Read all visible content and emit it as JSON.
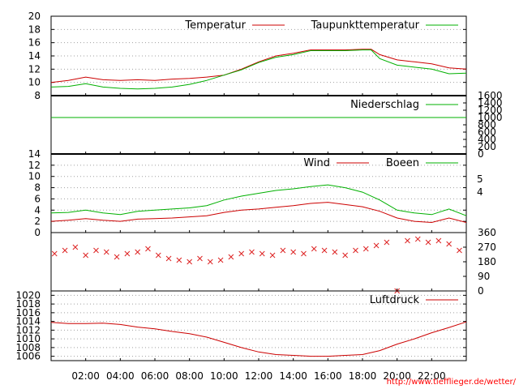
{
  "source_url": "http://www.tiefflieger.de/wetter/",
  "colors": {
    "primary": "#cc0000",
    "secondary": "#00b000",
    "marker": "#dd2222"
  },
  "x_axis": {
    "min": 0,
    "max": 24,
    "tick_labels": [
      "02:00",
      "04:00",
      "06:00",
      "08:00",
      "10:00",
      "12:00",
      "14:00",
      "16:00",
      "18:00",
      "20:00",
      "22:00"
    ],
    "tick_hours": [
      2,
      4,
      6,
      8,
      10,
      12,
      14,
      16,
      18,
      20,
      22
    ]
  },
  "chart_data": [
    {
      "id": "temperature",
      "type": "line",
      "ylim": [
        8,
        20
      ],
      "y_ticks": [
        "8",
        "10",
        "12",
        "14",
        "16",
        "18",
        "20"
      ],
      "grid": true,
      "legend_position": "top-right",
      "x": [
        0,
        1,
        2,
        3,
        4,
        5,
        6,
        7,
        8,
        9,
        10,
        11,
        12,
        13,
        14,
        15,
        16,
        17,
        18,
        18.5,
        19,
        20,
        21,
        22,
        23,
        24
      ],
      "series": [
        {
          "name": "Temperatur",
          "color": "#cc0000",
          "values": [
            10.0,
            10.3,
            10.8,
            10.4,
            10.3,
            10.4,
            10.3,
            10.5,
            10.6,
            10.8,
            11.1,
            12.0,
            13.1,
            14.0,
            14.4,
            14.9,
            14.9,
            14.9,
            15.0,
            15.0,
            14.2,
            13.4,
            13.1,
            12.8,
            12.2,
            12.0
          ]
        },
        {
          "name": "Taupunkttemperatur",
          "color": "#00b000",
          "values": [
            9.3,
            9.4,
            9.8,
            9.3,
            9.1,
            9.0,
            9.1,
            9.3,
            9.7,
            10.3,
            11.1,
            11.9,
            13.0,
            13.8,
            14.2,
            14.8,
            14.8,
            14.8,
            14.9,
            14.9,
            13.6,
            12.6,
            12.3,
            12.0,
            11.3,
            11.4
          ]
        }
      ]
    },
    {
      "id": "precipitation",
      "type": "line",
      "ylim": [
        0,
        1600
      ],
      "y_ticks": [
        "0",
        "200",
        "400",
        "600",
        "800",
        "1000",
        "1200",
        "1400",
        "1600"
      ],
      "grid": false,
      "legend_position": "top-right",
      "x": [
        0,
        24
      ],
      "series": [
        {
          "name": "Niederschlag",
          "color": "#00b000",
          "values": [
            1000,
            1000
          ]
        }
      ]
    },
    {
      "id": "wind",
      "type": "line",
      "ylim": [
        0,
        14
      ],
      "y_ticks": [
        "0",
        "2",
        "4",
        "6",
        "8",
        "10",
        "12",
        "14"
      ],
      "right_ticks": [
        "4",
        "5"
      ],
      "grid": true,
      "legend_position": "top-right",
      "x": [
        0,
        1,
        2,
        3,
        4,
        5,
        6,
        7,
        8,
        9,
        10,
        11,
        12,
        13,
        14,
        15,
        16,
        17,
        18,
        19,
        20,
        21,
        22,
        23,
        24
      ],
      "series": [
        {
          "name": "Wind",
          "color": "#cc0000",
          "values": [
            2.0,
            2.2,
            2.5,
            2.2,
            2.0,
            2.4,
            2.5,
            2.6,
            2.8,
            3.0,
            3.6,
            4.0,
            4.2,
            4.5,
            4.8,
            5.2,
            5.4,
            5.0,
            4.6,
            3.8,
            2.6,
            2.0,
            1.8,
            2.6,
            1.8
          ]
        },
        {
          "name": "Boeen",
          "color": "#00b000",
          "values": [
            3.5,
            3.6,
            4.0,
            3.5,
            3.2,
            3.8,
            4.0,
            4.2,
            4.4,
            4.8,
            5.8,
            6.5,
            7.0,
            7.5,
            7.8,
            8.2,
            8.5,
            8.0,
            7.2,
            5.8,
            4.0,
            3.5,
            3.2,
            4.2,
            3.0
          ]
        }
      ]
    },
    {
      "id": "wind_direction",
      "type": "scatter",
      "ylim": [
        0,
        360
      ],
      "y_ticks": [
        "0",
        "90",
        "180",
        "270",
        "360"
      ],
      "grid": false,
      "x": [
        0.2,
        0.8,
        1.4,
        2.0,
        2.6,
        3.2,
        3.8,
        4.4,
        5.0,
        5.6,
        6.2,
        6.8,
        7.4,
        8.0,
        8.6,
        9.2,
        9.8,
        10.4,
        11.0,
        11.6,
        12.2,
        12.8,
        13.4,
        14.0,
        14.6,
        15.2,
        15.8,
        16.4,
        17.0,
        17.6,
        18.2,
        18.8,
        19.4,
        20.0,
        20.6,
        21.2,
        21.8,
        22.4,
        23.0,
        23.6
      ],
      "series": [
        {
          "name": "",
          "color": "#dd2222",
          "values": [
            230,
            250,
            270,
            220,
            250,
            240,
            210,
            230,
            240,
            260,
            220,
            200,
            190,
            180,
            200,
            180,
            190,
            210,
            230,
            240,
            230,
            220,
            250,
            240,
            230,
            260,
            250,
            240,
            220,
            250,
            260,
            280,
            300,
            0,
            310,
            320,
            300,
            310,
            290,
            250
          ]
        }
      ]
    },
    {
      "id": "pressure",
      "type": "line",
      "ylim": [
        1005,
        1021
      ],
      "y_ticks": [
        "1006",
        "1008",
        "1010",
        "1012",
        "1014",
        "1016",
        "1018",
        "1020"
      ],
      "grid": true,
      "legend_position": "top-right",
      "x": [
        0,
        1,
        2,
        3,
        4,
        5,
        6,
        7,
        8,
        9,
        10,
        11,
        12,
        13,
        14,
        15,
        16,
        17,
        18,
        19,
        20,
        21,
        22,
        23,
        24
      ],
      "series": [
        {
          "name": "Luftdruck",
          "color": "#cc0000",
          "values": [
            1013.8,
            1013.5,
            1013.5,
            1013.6,
            1013.3,
            1012.7,
            1012.3,
            1011.7,
            1011.2,
            1010.4,
            1009.2,
            1008.0,
            1007.0,
            1006.4,
            1006.2,
            1006.0,
            1006.0,
            1006.2,
            1006.4,
            1007.3,
            1008.8,
            1010.0,
            1011.4,
            1012.6,
            1013.9
          ]
        }
      ]
    }
  ]
}
